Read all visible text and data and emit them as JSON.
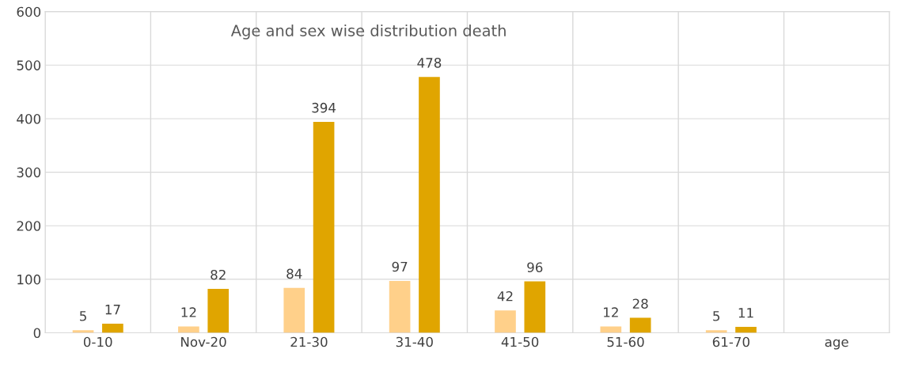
{
  "chart_data": {
    "type": "bar",
    "title": "Age and sex wise distribution death",
    "categories": [
      "0-10",
      "Nov-20",
      "21-30",
      "31-40",
      "41-50",
      "51-60",
      "61-70",
      "age"
    ],
    "series": [
      {
        "color": "#ffd08a",
        "values": [
          5,
          12,
          84,
          97,
          42,
          12,
          5,
          null
        ]
      },
      {
        "color": "#e0a500",
        "values": [
          17,
          82,
          394,
          478,
          96,
          28,
          11,
          null
        ]
      }
    ],
    "ylim": [
      0,
      600
    ],
    "yticks": [
      0,
      100,
      200,
      300,
      400,
      500,
      600
    ],
    "grid": true,
    "data_labels": true
  }
}
